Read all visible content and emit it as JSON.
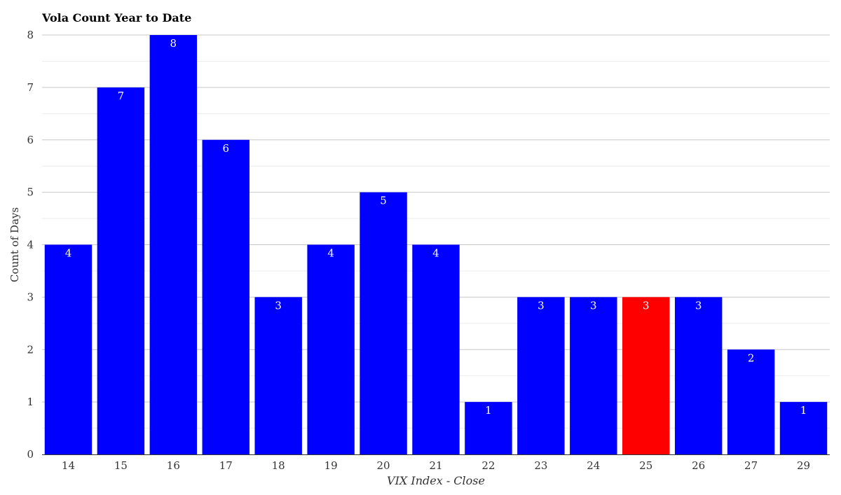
{
  "chart_data": {
    "type": "bar",
    "title": "Vola Count Year to Date",
    "xlabel": "VIX Index - Close",
    "ylabel": "Count of Days",
    "categories": [
      "14",
      "15",
      "16",
      "17",
      "18",
      "19",
      "20",
      "21",
      "22",
      "23",
      "24",
      "25",
      "26",
      "27",
      "29"
    ],
    "values": [
      4,
      7,
      8,
      6,
      3,
      4,
      5,
      4,
      1,
      3,
      3,
      3,
      3,
      2,
      1
    ],
    "highlight_category": "25",
    "ylim": [
      0,
      8
    ],
    "yticks": [
      0,
      1,
      2,
      3,
      4,
      5,
      6,
      7,
      8
    ],
    "grid": true,
    "legend": "none",
    "data_labels": true,
    "colors": {
      "bar": "#0000ff",
      "highlight": "#ff0000",
      "grid_major": "#c8c8c8",
      "grid_minor": "#ececec",
      "label": "#ffffff"
    }
  }
}
